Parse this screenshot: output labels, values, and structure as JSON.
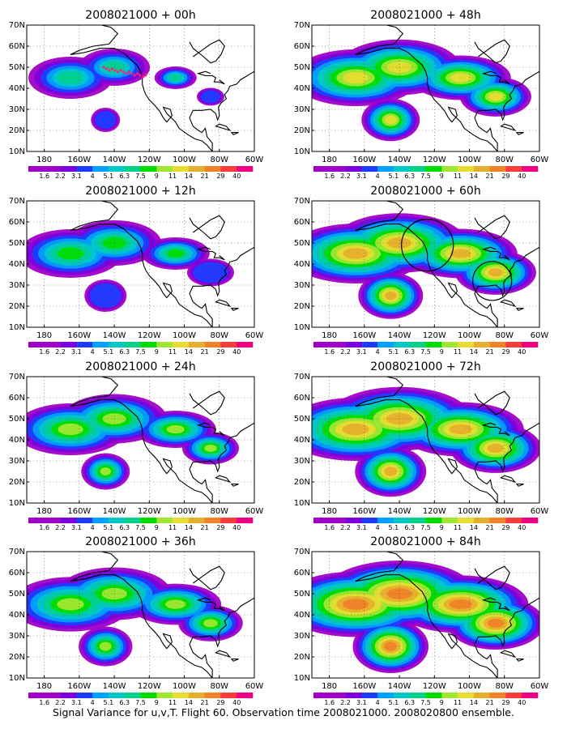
{
  "caption": "Signal Variance for u,v,T. Flight 60. Observation time 2008021000. 2008020800 ensemble.",
  "panels": [
    {
      "title": "2008021000 + 00h",
      "intensity": 0.2,
      "colorbar": true,
      "highlight": false
    },
    {
      "title": "2008021000 + 48h",
      "intensity": 0.65,
      "colorbar": true,
      "highlight": false
    },
    {
      "title": "2008021000 + 12h",
      "intensity": 0.4,
      "colorbar": true,
      "highlight": false
    },
    {
      "title": "2008021000 + 60h",
      "intensity": 0.75,
      "colorbar": true,
      "highlight": true
    },
    {
      "title": "2008021000 + 24h",
      "intensity": 0.5,
      "colorbar": true,
      "highlight": false
    },
    {
      "title": "2008021000 + 72h",
      "intensity": 0.85,
      "colorbar": true,
      "highlight": false
    },
    {
      "title": "2008021000 + 36h",
      "intensity": 0.58,
      "colorbar": true,
      "highlight": false
    },
    {
      "title": "2008021000 + 84h",
      "intensity": 0.92,
      "colorbar": true,
      "highlight": false
    }
  ],
  "axes": {
    "lat_labels": [
      "10N",
      "20N",
      "30N",
      "40N",
      "50N",
      "60N",
      "70N"
    ],
    "lon_labels": [
      "180",
      "160W",
      "140W",
      "120W",
      "100W",
      "80W",
      "60W"
    ]
  },
  "colorbar": {
    "labels": [
      "1.6",
      "2.2",
      "3.1",
      "4",
      "5.1",
      "6.3",
      "7.5",
      "9",
      "11",
      "14",
      "21",
      "29",
      "40"
    ],
    "colors": [
      "#a000c8",
      "#7d00dc",
      "#1e3cff",
      "#00a0ff",
      "#00c8c8",
      "#00d28c",
      "#00dc00",
      "#a0e632",
      "#e6dc32",
      "#e6af2d",
      "#f08228",
      "#fa3c3c",
      "#f00082"
    ]
  },
  "flight_track": {
    "label": "Flight 60"
  }
}
